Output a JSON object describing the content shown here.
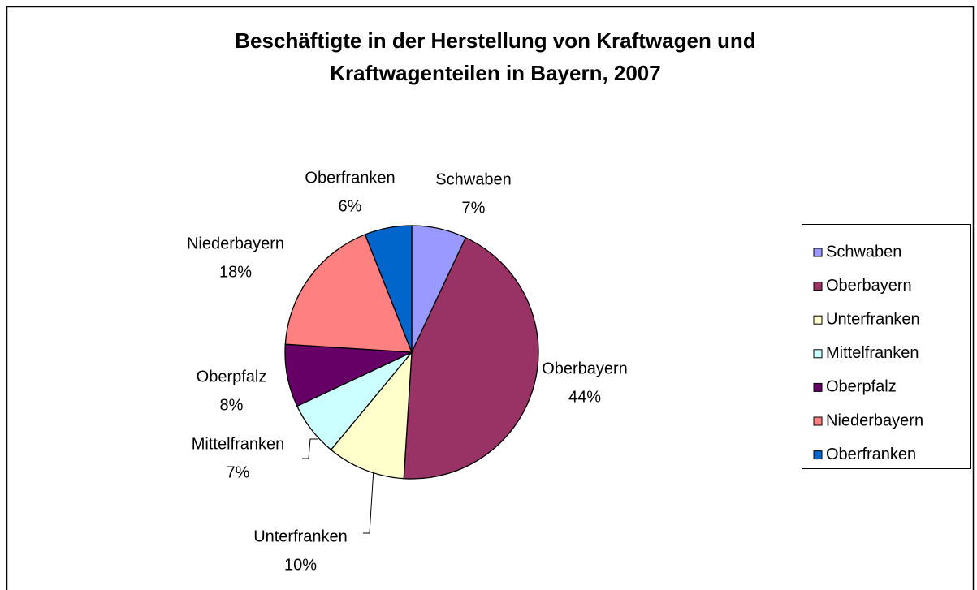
{
  "chart_data": {
    "type": "pie",
    "title": "Beschäftigte in der Herstellung von Kraftwagen und Kraftwagenteilen in Bayern, 2007",
    "categories": [
      "Schwaben",
      "Oberbayern",
      "Unterfranken",
      "Mittelfranken",
      "Oberpfalz",
      "Niederbayern",
      "Oberfranken"
    ],
    "values": [
      7,
      44,
      10,
      7,
      8,
      18,
      6
    ],
    "value_labels": [
      "7%",
      "44%",
      "10%",
      "7%",
      "8%",
      "18%",
      "6%"
    ],
    "colors": [
      "#9999ff",
      "#993366",
      "#ffffcc",
      "#ccffff",
      "#660066",
      "#ff8080",
      "#0066cc"
    ],
    "legend": "right"
  }
}
